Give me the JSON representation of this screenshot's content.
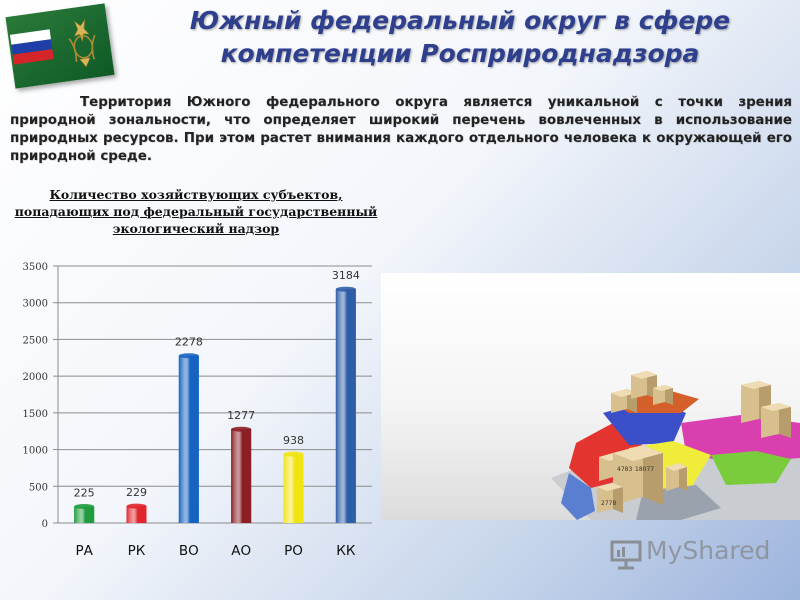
{
  "header": {
    "title_line1": "Южный федеральный округ в сфере",
    "title_line2": "компетенции Росприроднадзора"
  },
  "intro_text": "Территория Южного федерального округа является уникальной с точки зрения природной зональности, что определяет широкий перечень вовлеченных в использование природных ресурсов. При этом растет внимания каждого отдельного человека к окружающей его природной среде.",
  "chart_data": {
    "type": "bar",
    "title": "Количество хозяйствующих субъектов, попадающих под федеральный государственный экологический надзор",
    "title_lines": [
      "Количество хозяйствующих субъектов,",
      "попадающих под федеральный государственный",
      "экологический надзор"
    ],
    "categories": [
      "РА",
      "РК",
      "ВО",
      "АО",
      "РО",
      "КК"
    ],
    "values": [
      225,
      229,
      2278,
      1277,
      938,
      3184
    ],
    "value_labels": [
      "225",
      "229",
      "2278",
      "1277",
      "938",
      "3184"
    ],
    "bar_colors": [
      "#1f9c3e",
      "#e0262d",
      "#1763c2",
      "#8b1f25",
      "#f0e414",
      "#2f5ea8"
    ],
    "ylim": [
      0,
      3500
    ],
    "yticks": [
      0,
      500,
      1000,
      1500,
      2000,
      2500,
      3000,
      3500
    ],
    "ytick_labels": [
      "0",
      "500",
      "1000",
      "1500",
      "2000",
      "2500",
      "3000",
      "3500"
    ],
    "grid": true,
    "xlabel": "",
    "ylabel": ""
  },
  "map": {
    "box_labels": [
      "4783",
      "18077",
      "2778"
    ]
  },
  "watermark": {
    "text": "MyShared"
  }
}
